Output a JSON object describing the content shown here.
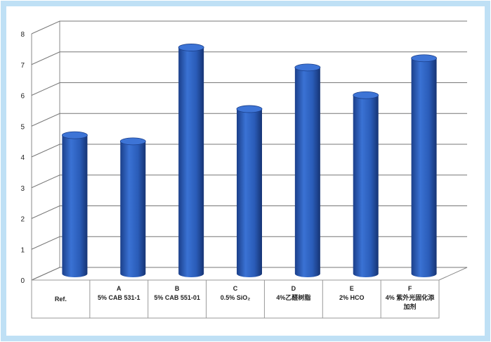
{
  "chart_data": {
    "type": "bar3d",
    "categories": [
      "Ref.",
      "5% CAB 531-1",
      "5% CAB 551-01",
      "0.5% SiO₂",
      "4%乙醛树脂",
      "2% HCO",
      "4% 紫外光固化添加剂"
    ],
    "category_letters": [
      null,
      "A",
      "B",
      "C",
      "D",
      "E",
      "F"
    ],
    "values": [
      4.5,
      4.3,
      7.35,
      5.35,
      6.7,
      5.8,
      7.0
    ],
    "color": "#2a5cb8",
    "ylim": [
      0,
      8
    ],
    "yticks": [
      0,
      1,
      2,
      3,
      4,
      5,
      6,
      7,
      8
    ],
    "grid": true
  }
}
